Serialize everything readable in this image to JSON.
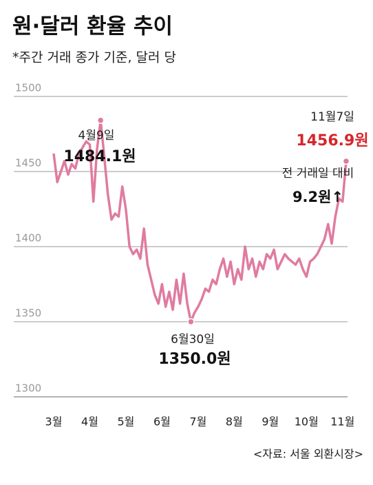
{
  "chart_data": {
    "type": "line",
    "title": "원·달러 환율 추이",
    "subtitle": "*주간 거래 종가 기준, 달러 당",
    "source": "<자료: 서울 외환시장>",
    "categories": [
      "3월",
      null,
      null,
      null,
      null,
      null,
      null,
      null,
      null,
      null,
      "4월",
      null,
      null,
      null,
      null,
      null,
      null,
      null,
      null,
      null,
      "5월",
      null,
      null,
      null,
      null,
      null,
      null,
      null,
      null,
      null,
      "6월",
      null,
      null,
      null,
      null,
      null,
      null,
      null,
      null,
      null,
      "7월",
      null,
      null,
      null,
      null,
      null,
      null,
      null,
      null,
      null,
      "8월",
      null,
      null,
      null,
      null,
      null,
      null,
      null,
      null,
      null,
      "9월",
      null,
      null,
      null,
      null,
      null,
      null,
      null,
      null,
      null,
      "10월",
      null,
      null,
      null,
      null,
      null,
      null,
      null,
      null,
      null,
      "11월",
      null
    ],
    "values": [
      1462,
      1443,
      1450,
      1457,
      1448,
      1455,
      1452,
      1462,
      1466,
      1470,
      1468,
      1430,
      1465,
      1484.1,
      1460,
      1435,
      1418,
      1422,
      1420,
      1440,
      1425,
      1400,
      1395,
      1398,
      1392,
      1412,
      1388,
      1378,
      1368,
      1362,
      1375,
      1360,
      1370,
      1358,
      1378,
      1362,
      1382,
      1362,
      1350.0,
      1356,
      1360,
      1365,
      1372,
      1370,
      1378,
      1375,
      1385,
      1392,
      1380,
      1390,
      1375,
      1385,
      1378,
      1400,
      1385,
      1392,
      1380,
      1390,
      1385,
      1395,
      1392,
      1398,
      1385,
      1390,
      1395,
      1392,
      1390,
      1388,
      1392,
      1385,
      1380,
      1390,
      1392,
      1395,
      1400,
      1405,
      1415,
      1402,
      1420,
      1432,
      1430,
      1456.9
    ],
    "value_labels": [
      null,
      null,
      null,
      null,
      null,
      null,
      null,
      null,
      null,
      null,
      null,
      null,
      null,
      "1484.1원",
      null,
      null,
      null,
      null,
      null,
      null,
      null,
      null,
      null,
      null,
      null,
      null,
      null,
      null,
      null,
      null,
      null,
      null,
      null,
      null,
      null,
      null,
      null,
      null,
      "1350.0원",
      null,
      null,
      null,
      null,
      null,
      null,
      null,
      null,
      null,
      null,
      null,
      null,
      null,
      null,
      null,
      null,
      null,
      null,
      null,
      null,
      null,
      null,
      null,
      null,
      null,
      null,
      null,
      null,
      null,
      null,
      null,
      null,
      null,
      null,
      null,
      null,
      null,
      null,
      null,
      null,
      null,
      null,
      "1456.9원"
    ],
    "annotations": [
      "4월9일",
      "6월30일",
      "11월7일",
      "전 거래일 대비",
      "9.2원↑"
    ],
    "color": "#e07ba0",
    "highlight_color": "#d6262b",
    "ylim": [
      1300,
      1500
    ],
    "yticks": [
      1300,
      1350,
      1400,
      1450,
      1500
    ],
    "grid": true
  }
}
